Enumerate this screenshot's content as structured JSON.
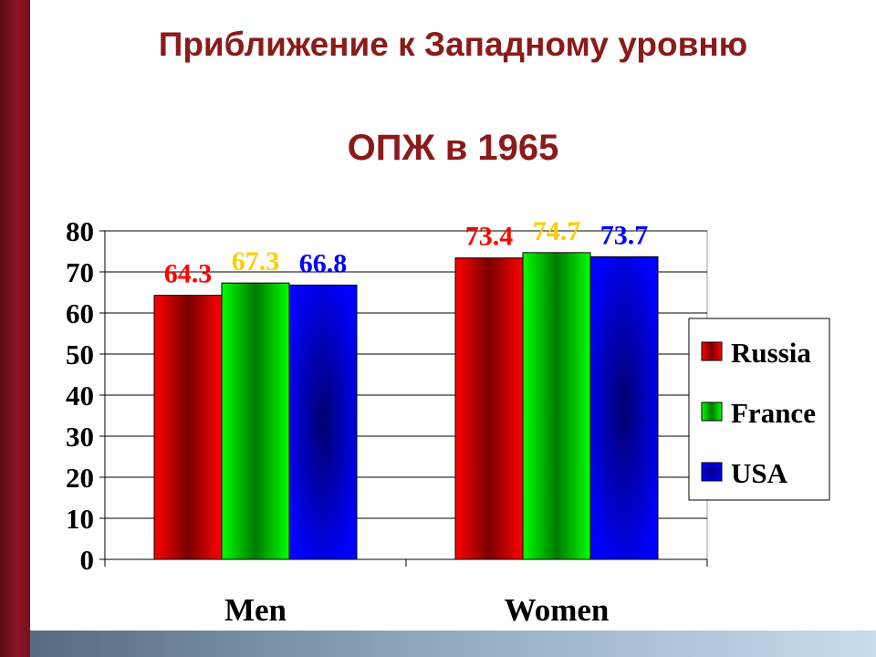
{
  "slide": {
    "title": "Приближение к Западному уровню",
    "subtitle": "ОПЖ в 1965"
  },
  "colors": {
    "title": "#8b1a1a",
    "sidebar": "#8c1426",
    "series": [
      "#ff0000",
      "#00ee00",
      "#0000ff"
    ],
    "value_labels": [
      "#ff0000",
      "#ffcc00",
      "#0000ff"
    ]
  },
  "chart_data": {
    "type": "bar",
    "categories": [
      "Men",
      "Women"
    ],
    "series": [
      {
        "name": "Russia",
        "values": [
          64.3,
          73.4
        ]
      },
      {
        "name": "France",
        "values": [
          67.3,
          74.7
        ]
      },
      {
        "name": "USA",
        "values": [
          66.8,
          73.7
        ]
      }
    ],
    "title": "",
    "xlabel": "",
    "ylabel": "",
    "ylim": [
      0,
      80
    ],
    "yticks": [
      "0",
      "10",
      "20",
      "30",
      "40",
      "50",
      "60",
      "70",
      "80"
    ],
    "grid": true,
    "legend": "right",
    "data_labels": true
  }
}
